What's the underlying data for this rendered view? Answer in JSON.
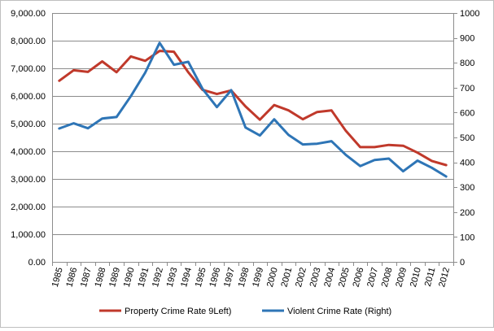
{
  "chart_data": {
    "type": "line",
    "title": "",
    "xlabel": "",
    "ylabel": "",
    "categories": [
      "1985",
      "1986",
      "1987",
      "1988",
      "1989",
      "1990",
      "1991",
      "1992",
      "1993",
      "1994",
      "1995",
      "1996",
      "1997",
      "1998",
      "1999",
      "2000",
      "2001",
      "2002",
      "2003",
      "2004",
      "2005",
      "2006",
      "2007",
      "2008",
      "2009",
      "2010",
      "2011",
      "2012"
    ],
    "left_axis": {
      "ylim": [
        0,
        9000
      ],
      "ticks": [
        0,
        1000,
        2000,
        3000,
        4000,
        5000,
        6000,
        7000,
        8000,
        9000
      ],
      "tick_labels": [
        "0.00",
        "1,000.00",
        "2,000.00",
        "3,000.00",
        "4,000.00",
        "5,000.00",
        "6,000.00",
        "7,000.00",
        "8,000.00",
        "9,000.00"
      ]
    },
    "right_axis": {
      "ylim": [
        0,
        1000
      ],
      "ticks": [
        0,
        100,
        200,
        300,
        400,
        500,
        600,
        700,
        800,
        900,
        1000
      ],
      "tick_labels": [
        "0",
        "100",
        "200",
        "300",
        "400",
        "500",
        "600",
        "700",
        "800",
        "900",
        "1000"
      ]
    },
    "series": [
      {
        "name": "Property Crime Rate 9Left)",
        "axis": "left",
        "color": "#c0392b",
        "values": [
          6550,
          6930,
          6870,
          7250,
          6860,
          7430,
          7270,
          7630,
          7600,
          6860,
          6220,
          6070,
          6200,
          5620,
          5140,
          5670,
          5480,
          5160,
          5420,
          5480,
          4740,
          4150,
          4150,
          4230,
          4200,
          3950,
          3650,
          3500
        ]
      },
      {
        "name": "Violent Crime Rate (Right)",
        "axis": "right",
        "color": "#2e75b6",
        "values": [
          536,
          557,
          537,
          576,
          582,
          666,
          760,
          880,
          792,
          804,
          695,
          622,
          690,
          540,
          508,
          573,
          510,
          472,
          475,
          485,
          430,
          385,
          409,
          415,
          364,
          407,
          378,
          343
        ]
      }
    ],
    "legend": {
      "position": "bottom",
      "items": [
        {
          "label": "Property Crime Rate 9Left)",
          "color": "#c0392b"
        },
        {
          "label": "Violent Crime Rate (Right)",
          "color": "#2e75b6"
        }
      ]
    }
  }
}
